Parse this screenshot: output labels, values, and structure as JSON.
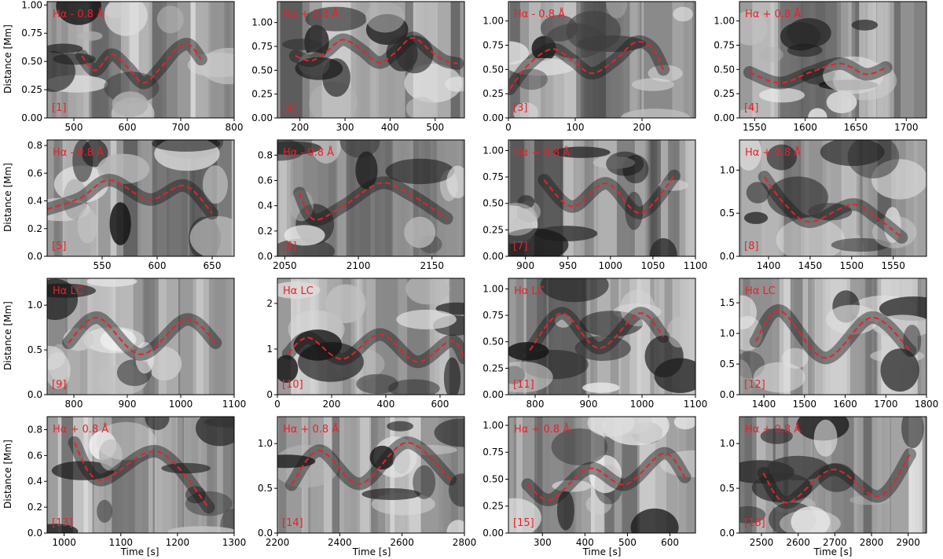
{
  "figure": {
    "ylabel": "Distance [Mm]",
    "xlabel": "Time [s]",
    "curve_color": "#e8212b",
    "label_color": "#e8212b"
  },
  "chart_data": [
    {
      "type": "line",
      "panel": "[1]",
      "channel": "Hα - 0.8 Å",
      "xlim": [
        450,
        800
      ],
      "ylim": [
        0,
        1.03
      ],
      "xticks": [
        500,
        600,
        700,
        800
      ],
      "yticks": [
        0.0,
        0.25,
        0.5,
        0.75,
        1.0
      ],
      "ytick_labels": [
        "0.00",
        "0.25",
        "0.50",
        "0.75",
        "1.00"
      ],
      "x": [
        515,
        540,
        570,
        600,
        630,
        660,
        690,
        715,
        738
      ],
      "y": [
        0.55,
        0.42,
        0.56,
        0.45,
        0.31,
        0.43,
        0.6,
        0.65,
        0.52
      ]
    },
    {
      "type": "line",
      "panel": "[2]",
      "channel": "Hα + 0.8 Å",
      "xlim": [
        150,
        565
      ],
      "ylim": [
        0,
        1.22
      ],
      "xticks": [
        200,
        300,
        400,
        500
      ],
      "yticks": [
        0.0,
        0.25,
        0.5,
        0.75,
        1.0
      ],
      "ytick_labels": [
        "0.00",
        "0.25",
        "0.50",
        "0.75",
        "1.00"
      ],
      "x": [
        190,
        225,
        260,
        295,
        335,
        375,
        410,
        450,
        490,
        520,
        550
      ],
      "y": [
        0.65,
        0.6,
        0.7,
        0.82,
        0.72,
        0.58,
        0.68,
        0.84,
        0.7,
        0.6,
        0.57
      ]
    },
    {
      "type": "line",
      "panel": "[3]",
      "channel": "Hα - 0.8 Å",
      "xlim": [
        0,
        280
      ],
      "ylim": [
        0,
        1.2
      ],
      "xticks": [
        0,
        100,
        200
      ],
      "yticks": [
        0.0,
        0.25,
        0.5,
        0.75,
        1.0
      ],
      "ytick_labels": [
        "0.00",
        "0.25",
        "0.50",
        "0.75",
        "1.00"
      ],
      "x": [
        2,
        30,
        65,
        95,
        125,
        160,
        190,
        215,
        232
      ],
      "y": [
        0.3,
        0.55,
        0.71,
        0.6,
        0.46,
        0.6,
        0.78,
        0.72,
        0.5
      ]
    },
    {
      "type": "line",
      "panel": "[4]",
      "channel": "Hα + 0.8 Å",
      "xlim": [
        1535,
        1720
      ],
      "ylim": [
        0,
        1.2
      ],
      "xticks": [
        1550,
        1600,
        1650,
        1700
      ],
      "yticks": [
        0.0,
        0.25,
        0.5,
        0.75,
        1.0
      ],
      "ytick_labels": [
        "0.00",
        "0.25",
        "0.50",
        "0.75",
        "1.00"
      ],
      "x": [
        1545,
        1575,
        1605,
        1635,
        1660,
        1680
      ],
      "y": [
        0.47,
        0.36,
        0.47,
        0.56,
        0.45,
        0.52
      ]
    },
    {
      "type": "line",
      "panel": "[5]",
      "channel": "Hα - 0.8 Å",
      "xlim": [
        500,
        670
      ],
      "ylim": [
        0,
        0.84
      ],
      "xticks": [
        550,
        600,
        650
      ],
      "yticks": [
        0.0,
        0.2,
        0.4,
        0.6,
        0.8
      ],
      "ytick_labels": [
        "0.0",
        "0.2",
        "0.4",
        "0.6",
        "0.8"
      ],
      "x": [
        500,
        530,
        557,
        593,
        625,
        650
      ],
      "y": [
        0.34,
        0.42,
        0.55,
        0.41,
        0.51,
        0.31
      ]
    },
    {
      "type": "line",
      "panel": "[6]",
      "channel": "Hα - 0.8 Å",
      "xlim": [
        2045,
        2172
      ],
      "ylim": [
        0,
        0.92
      ],
      "xticks": [
        2050,
        2100,
        2150
      ],
      "yticks": [
        0.0,
        0.2,
        0.4,
        0.6,
        0.8
      ],
      "ytick_labels": [
        "0.0",
        "0.2",
        "0.4",
        "0.6",
        "0.8"
      ],
      "x": [
        2060,
        2070,
        2090,
        2115,
        2135,
        2160
      ],
      "y": [
        0.5,
        0.29,
        0.4,
        0.58,
        0.49,
        0.3
      ]
    },
    {
      "type": "line",
      "panel": "[7]",
      "channel": "Hα + 0.8 Å",
      "xlim": [
        880,
        1100
      ],
      "ylim": [
        0,
        1.1
      ],
      "xticks": [
        900,
        950,
        1000,
        1050,
        1100
      ],
      "yticks": [
        0.0,
        0.25,
        0.5,
        0.75,
        1.0
      ],
      "ytick_labels": [
        "0.00",
        "0.25",
        "0.50",
        "0.75",
        "1.00"
      ],
      "x": [
        922,
        955,
        995,
        1035,
        1075
      ],
      "y": [
        0.72,
        0.47,
        0.69,
        0.41,
        0.76
      ]
    },
    {
      "type": "line",
      "panel": "[8]",
      "channel": "Hα + 0.8 Å",
      "xlim": [
        1365,
        1590
      ],
      "ylim": [
        0,
        1.35
      ],
      "xticks": [
        1400,
        1450,
        1500,
        1550
      ],
      "yticks": [
        0.0,
        0.5,
        1.0
      ],
      "ytick_labels": [
        "0.0",
        "0.5",
        "1.0"
      ],
      "x": [
        1395,
        1420,
        1450,
        1500,
        1530,
        1560
      ],
      "y": [
        0.92,
        0.6,
        0.4,
        0.6,
        0.45,
        0.22
      ]
    },
    {
      "type": "line",
      "panel": "[9]",
      "channel": "Hα LC",
      "xlim": [
        750,
        1100
      ],
      "ylim": [
        0,
        1.3
      ],
      "xticks": [
        800,
        900,
        1000,
        1100
      ],
      "yticks": [
        0.0,
        0.5,
        1.0
      ],
      "ytick_labels": [
        "0.0",
        "0.5",
        "1.0"
      ],
      "x": [
        790,
        845,
        925,
        1010,
        1065
      ],
      "y": [
        0.58,
        0.86,
        0.45,
        0.84,
        0.58
      ]
    },
    {
      "type": "line",
      "panel": "[10]",
      "channel": "Hα LC",
      "xlim": [
        0,
        690
      ],
      "ylim": [
        0,
        2.55
      ],
      "xticks": [
        0,
        200,
        400,
        600
      ],
      "yticks": [
        0,
        1,
        2
      ],
      "ytick_labels": [
        "0",
        "1",
        "2"
      ],
      "x": [
        40,
        115,
        240,
        380,
        515,
        640,
        690
      ],
      "y": [
        0.9,
        1.25,
        0.78,
        1.32,
        0.72,
        1.18,
        0.8
      ]
    },
    {
      "type": "line",
      "panel": "[11]",
      "channel": "Hα LC",
      "xlim": [
        750,
        1100
      ],
      "ylim": [
        0,
        1.1
      ],
      "xticks": [
        800,
        900,
        1000,
        1100
      ],
      "yticks": [
        0.0,
        0.25,
        0.5,
        0.75,
        1.0
      ],
      "ytick_labels": [
        "0.00",
        "0.25",
        "0.50",
        "0.75",
        "1.00"
      ],
      "x": [
        790,
        850,
        920,
        995,
        1040
      ],
      "y": [
        0.42,
        0.77,
        0.44,
        0.77,
        0.55
      ]
    },
    {
      "type": "line",
      "panel": "[12]",
      "channel": "Hα LC",
      "xlim": [
        1340,
        1800
      ],
      "ylim": [
        0,
        1.9
      ],
      "xticks": [
        1400,
        1500,
        1600,
        1700,
        1800
      ],
      "yticks": [
        0.0,
        0.5,
        1.0,
        1.5
      ],
      "ytick_labels": [
        "0.0",
        "0.5",
        "1.0",
        "1.5"
      ],
      "x": [
        1380,
        1440,
        1550,
        1665,
        1760
      ],
      "y": [
        0.87,
        1.37,
        0.6,
        1.26,
        0.72
      ]
    },
    {
      "type": "line",
      "panel": "[13]",
      "channel": "Hα + 0.8 Å",
      "xlim": [
        970,
        1300
      ],
      "ylim": [
        0,
        0.9
      ],
      "xticks": [
        1000,
        1100,
        1200,
        1300
      ],
      "yticks": [
        0.0,
        0.2,
        0.4,
        0.6,
        0.8
      ],
      "ytick_labels": [
        "0.0",
        "0.2",
        "0.4",
        "0.6",
        "0.8"
      ],
      "x": [
        1018,
        1063,
        1165,
        1255
      ],
      "y": [
        0.7,
        0.41,
        0.63,
        0.2
      ]
    },
    {
      "type": "line",
      "panel": "[14]",
      "channel": "Hα + 0.8 Å",
      "xlim": [
        2200,
        2800
      ],
      "ylim": [
        0,
        1.3
      ],
      "xticks": [
        2200,
        2400,
        2600,
        2800
      ],
      "yticks": [
        0.0,
        0.5,
        1.0
      ],
      "ytick_labels": [
        "0.0",
        "0.5",
        "1.0"
      ],
      "x": [
        2245,
        2335,
        2465,
        2615,
        2755
      ],
      "y": [
        0.54,
        0.92,
        0.55,
        1.01,
        0.6
      ]
    },
    {
      "type": "line",
      "panel": "[15]",
      "channel": "Hα + 0.8 Å",
      "xlim": [
        220,
        660
      ],
      "ylim": [
        0,
        1.08
      ],
      "xticks": [
        300,
        400,
        500,
        600
      ],
      "yticks": [
        0.0,
        0.25,
        0.5,
        0.75,
        1.0
      ],
      "ytick_labels": [
        "0.00",
        "0.25",
        "0.50",
        "0.75",
        "1.00"
      ],
      "x": [
        265,
        320,
        410,
        495,
        585,
        635
      ],
      "y": [
        0.45,
        0.31,
        0.6,
        0.45,
        0.74,
        0.52
      ]
    },
    {
      "type": "line",
      "panel": "[16]",
      "channel": "Hα + 0.8 Å",
      "xlim": [
        2440,
        2950
      ],
      "ylim": [
        0,
        1.3
      ],
      "xticks": [
        2500,
        2600,
        2700,
        2800,
        2900
      ],
      "yticks": [
        0.0,
        0.5,
        1.0
      ],
      "ytick_labels": [
        "0.0",
        "0.5",
        "1.0"
      ],
      "x": [
        2505,
        2570,
        2695,
        2820,
        2905
      ],
      "y": [
        0.67,
        0.34,
        0.71,
        0.41,
        0.88
      ]
    }
  ]
}
